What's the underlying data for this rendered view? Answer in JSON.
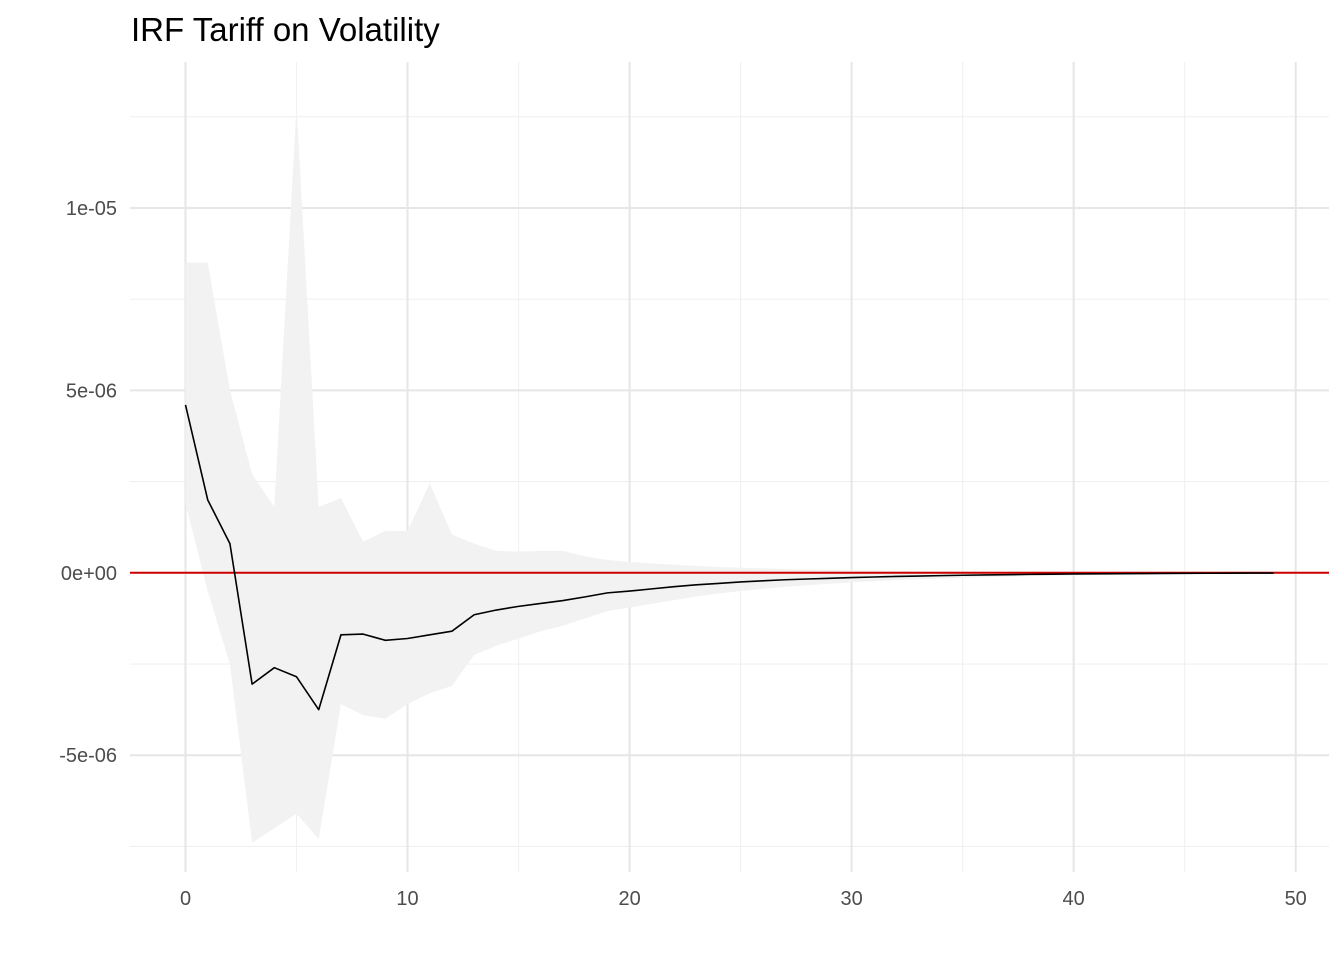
{
  "chart_data": {
    "type": "line",
    "title": "IRF Tariff on Volatility",
    "xlabel": "",
    "ylabel": "",
    "xlim": [
      -2.5,
      51.5
    ],
    "ylim": [
      -8.2e-06,
      1.4e-05
    ],
    "x_ticks": [
      0,
      10,
      20,
      30,
      40,
      50
    ],
    "x_tick_labels": [
      "0",
      "10",
      "20",
      "30",
      "40",
      "50"
    ],
    "y_ticks": [
      -5e-06,
      0,
      5e-06,
      1e-05
    ],
    "y_tick_labels": [
      "-5e-06",
      "0e+00",
      "5e-06",
      "1e-05"
    ],
    "grid": true,
    "reference_line": {
      "y": 0,
      "color": "#cc0000"
    },
    "band_color": "#f2f2f2",
    "line_color": "#000000",
    "series": [
      {
        "x": [
          0,
          1,
          2,
          3,
          4,
          5,
          6,
          7,
          8,
          9,
          10,
          11,
          12,
          13,
          14,
          15,
          16,
          17,
          18,
          19,
          20,
          21,
          22,
          23,
          24,
          25,
          26,
          27,
          28,
          29,
          30,
          31,
          32,
          33,
          34,
          35,
          36,
          37,
          38,
          39,
          40,
          41,
          42,
          43,
          44,
          45,
          46,
          47,
          48,
          49
        ],
        "irf": [
          4.6e-06,
          2e-06,
          8e-07,
          -3.05e-06,
          -2.6e-06,
          -2.85e-06,
          -3.75e-06,
          -1.7e-06,
          -1.68e-06,
          -1.85e-06,
          -1.8e-06,
          -1.7e-06,
          -1.6e-06,
          -1.15e-06,
          -1.02e-06,
          -9.2e-07,
          -8.4e-07,
          -7.6e-07,
          -6.6e-07,
          -5.5e-07,
          -5e-07,
          -4.4e-07,
          -3.8e-07,
          -3.3e-07,
          -2.9e-07,
          -2.5e-07,
          -2.2e-07,
          -1.9e-07,
          -1.7e-07,
          -1.5e-07,
          -1.3e-07,
          -1.15e-07,
          -1e-07,
          -8.8e-08,
          -7.7e-08,
          -6.7e-08,
          -5.8e-08,
          -5e-08,
          -4.3e-08,
          -3.7e-08,
          -3.2e-08,
          -2.7e-08,
          -2.3e-08,
          -2e-08,
          -1.7e-08,
          -1.4e-08,
          -1.2e-08,
          -1e-08,
          -8e-09,
          -7e-09
        ],
        "upper": [
          8.5e-06,
          8.5e-06,
          5e-06,
          2.7e-06,
          1.8e-06,
          1.28e-05,
          1.8e-06,
          2.05e-06,
          8.5e-07,
          1.15e-06,
          1.15e-06,
          2.45e-06,
          1.05e-06,
          8e-07,
          6e-07,
          5.8e-07,
          6e-07,
          6e-07,
          4.5e-07,
          3.5e-07,
          3e-07,
          2.6e-07,
          2.2e-07,
          1.9e-07,
          1.6e-07,
          1.4e-07,
          1.2e-07,
          1e-07,
          9e-08,
          8e-08,
          7e-08,
          6e-08,
          5e-08,
          4.5e-08,
          4e-08,
          3.5e-08,
          3e-08,
          2.6e-08,
          2.2e-08,
          1.9e-08,
          1.6e-08,
          1.4e-08,
          1.2e-08,
          1e-08,
          9e-09,
          8e-09,
          7e-09,
          6e-09,
          5e-09,
          4e-09
        ],
        "lower": [
          1.9e-06,
          -5e-07,
          -2.5e-06,
          -7.4e-06,
          -7e-06,
          -6.6e-06,
          -7.3e-06,
          -3.6e-06,
          -3.9e-06,
          -4e-06,
          -3.6e-06,
          -3.3e-06,
          -3.1e-06,
          -2.25e-06,
          -2e-06,
          -1.8e-06,
          -1.6e-06,
          -1.45e-06,
          -1.25e-06,
          -1.05e-06,
          -9.5e-07,
          -8.5e-07,
          -7.5e-07,
          -6.5e-07,
          -5.7e-07,
          -5e-07,
          -4.4e-07,
          -3.9e-07,
          -3.4e-07,
          -3e-07,
          -2.6e-07,
          -2.3e-07,
          -2e-07,
          -1.8e-07,
          -1.6e-07,
          -1.4e-07,
          -1.2e-07,
          -1.05e-07,
          -9e-08,
          -8e-08,
          -7e-08,
          -6e-08,
          -5.2e-08,
          -4.5e-08,
          -3.9e-08,
          -3.4e-08,
          -3e-08,
          -2.6e-08,
          -2.2e-08,
          -1.9e-08
        ]
      }
    ]
  }
}
